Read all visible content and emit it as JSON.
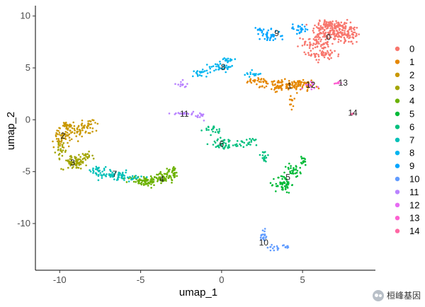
{
  "chart_data": {
    "type": "scatter",
    "xlabel": "umap_1",
    "ylabel": "umap_2",
    "xlim": [
      -11.5,
      9.5
    ],
    "ylim": [
      -14.5,
      11
    ],
    "xticks": [
      -10,
      -5,
      0,
      5
    ],
    "yticks": [
      10,
      5,
      0,
      -5,
      -10
    ],
    "grid": false,
    "legend_position": "right",
    "series": [
      {
        "name": "0",
        "color": "#F8766D",
        "label_pos": [
          6.6,
          7.9
        ],
        "blobs": [
          [
            6.8,
            8.6,
            1.1,
            0.9,
            120
          ],
          [
            7.8,
            8.2,
            0.7,
            0.9,
            70
          ],
          [
            5.8,
            7.4,
            0.8,
            0.7,
            70
          ],
          [
            6.3,
            6.3,
            0.8,
            0.6,
            50
          ],
          [
            6.8,
            9.2,
            0.9,
            0.4,
            60
          ]
        ]
      },
      {
        "name": "1",
        "color": "#E58700",
        "label_pos": [
          4.2,
          3.2
        ],
        "blobs": [
          [
            4.0,
            3.3,
            1.3,
            0.45,
            110
          ],
          [
            2.3,
            3.7,
            0.9,
            0.3,
            30
          ],
          [
            5.3,
            3.4,
            0.6,
            0.35,
            30
          ],
          [
            4.3,
            1.6,
            0.12,
            0.6,
            12
          ]
        ]
      },
      {
        "name": "2",
        "color": "#C99800",
        "label_pos": [
          -9.8,
          -1.6
        ],
        "blobs": [
          [
            -9.8,
            -1.5,
            0.5,
            1.1,
            60
          ],
          [
            -8.7,
            -1.0,
            0.6,
            0.5,
            40
          ],
          [
            -8.2,
            -0.4,
            0.4,
            0.4,
            20
          ],
          [
            -9.6,
            -0.6,
            0.4,
            0.4,
            20
          ]
        ]
      },
      {
        "name": "3",
        "color": "#A3A500",
        "label_pos": [
          -9.2,
          -4.2
        ],
        "blobs": [
          [
            -9.1,
            -4.1,
            0.7,
            0.6,
            70
          ],
          [
            -9.9,
            -3.0,
            0.3,
            0.6,
            20
          ],
          [
            -8.4,
            -3.6,
            0.4,
            0.4,
            20
          ]
        ]
      },
      {
        "name": "4",
        "color": "#6BB100",
        "label_pos": [
          -3.7,
          -5.8
        ],
        "blobs": [
          [
            -4.8,
            -5.9,
            0.9,
            0.45,
            70
          ],
          [
            -3.5,
            -5.5,
            0.6,
            0.5,
            50
          ],
          [
            -3.0,
            -5.0,
            0.3,
            0.4,
            20
          ]
        ]
      },
      {
        "name": "5",
        "color": "#00BA38",
        "label_pos": [
          4.1,
          -5.6
        ],
        "blobs": [
          [
            3.8,
            -6.2,
            0.45,
            0.8,
            60
          ],
          [
            4.5,
            -4.9,
            0.5,
            0.6,
            30
          ],
          [
            5.0,
            -4.0,
            0.3,
            0.4,
            15
          ]
        ]
      },
      {
        "name": "6",
        "color": "#00BF7D",
        "label_pos": [
          0.0,
          -2.4
        ],
        "blobs": [
          [
            0.2,
            -2.3,
            0.8,
            0.5,
            40
          ],
          [
            -0.5,
            -1.0,
            0.5,
            0.4,
            20
          ],
          [
            1.6,
            -2.2,
            0.8,
            0.4,
            25
          ],
          [
            2.6,
            -3.5,
            0.3,
            0.6,
            15
          ]
        ]
      },
      {
        "name": "7",
        "color": "#00C0B8",
        "label_pos": [
          -6.6,
          -5.3
        ],
        "blobs": [
          [
            -6.6,
            -5.3,
            0.9,
            0.4,
            60
          ],
          [
            -7.7,
            -4.8,
            0.5,
            0.3,
            25
          ],
          [
            -5.5,
            -5.6,
            0.5,
            0.3,
            20
          ]
        ]
      },
      {
        "name": "8",
        "color": "#00B4EF",
        "label_pos": [
          0.1,
          5.0
        ],
        "blobs": [
          [
            0.0,
            5.1,
            0.7,
            0.4,
            40
          ],
          [
            -1.2,
            4.6,
            0.6,
            0.3,
            20
          ],
          [
            0.4,
            5.7,
            0.4,
            0.2,
            15
          ],
          [
            1.8,
            4.4,
            0.6,
            0.3,
            15
          ]
        ]
      },
      {
        "name": "9",
        "color": "#00A5FF",
        "label_pos": [
          3.4,
          8.3
        ],
        "blobs": [
          [
            3.0,
            8.1,
            0.6,
            0.5,
            40
          ],
          [
            4.8,
            8.8,
            0.6,
            0.4,
            25
          ],
          [
            2.3,
            8.6,
            0.3,
            0.3,
            12
          ]
        ]
      },
      {
        "name": "10",
        "color": "#619CFF",
        "label_pos": [
          2.6,
          -11.9
        ],
        "blobs": [
          [
            2.6,
            -11.2,
            0.2,
            0.7,
            20
          ],
          [
            3.4,
            -12.3,
            0.5,
            0.3,
            15
          ],
          [
            4.0,
            -12.2,
            0.2,
            0.2,
            8
          ]
        ]
      },
      {
        "name": "11",
        "color": "#B983FF",
        "label_pos": [
          -2.3,
          0.5
        ],
        "blobs": [
          [
            -2.3,
            0.6,
            0.7,
            0.2,
            20
          ],
          [
            -1.3,
            0.3,
            0.4,
            0.3,
            10
          ],
          [
            -2.5,
            3.4,
            0.3,
            0.3,
            12
          ]
        ]
      },
      {
        "name": "12",
        "color": "#E76BF3",
        "label_pos": [
          5.5,
          3.3
        ],
        "blobs": [
          [
            5.6,
            3.3,
            0.4,
            0.3,
            12
          ]
        ]
      },
      {
        "name": "13",
        "color": "#FD61D1",
        "label_pos": [
          7.5,
          3.5
        ],
        "blobs": [
          [
            7.3,
            3.6,
            0.3,
            0.15,
            8
          ]
        ]
      },
      {
        "name": "14",
        "color": "#FF67A4",
        "label_pos": [
          8.1,
          0.6
        ],
        "blobs": [
          [
            8.0,
            0.6,
            0.1,
            0.1,
            4
          ]
        ]
      }
    ]
  },
  "watermark": {
    "text": "桓峰基因"
  }
}
